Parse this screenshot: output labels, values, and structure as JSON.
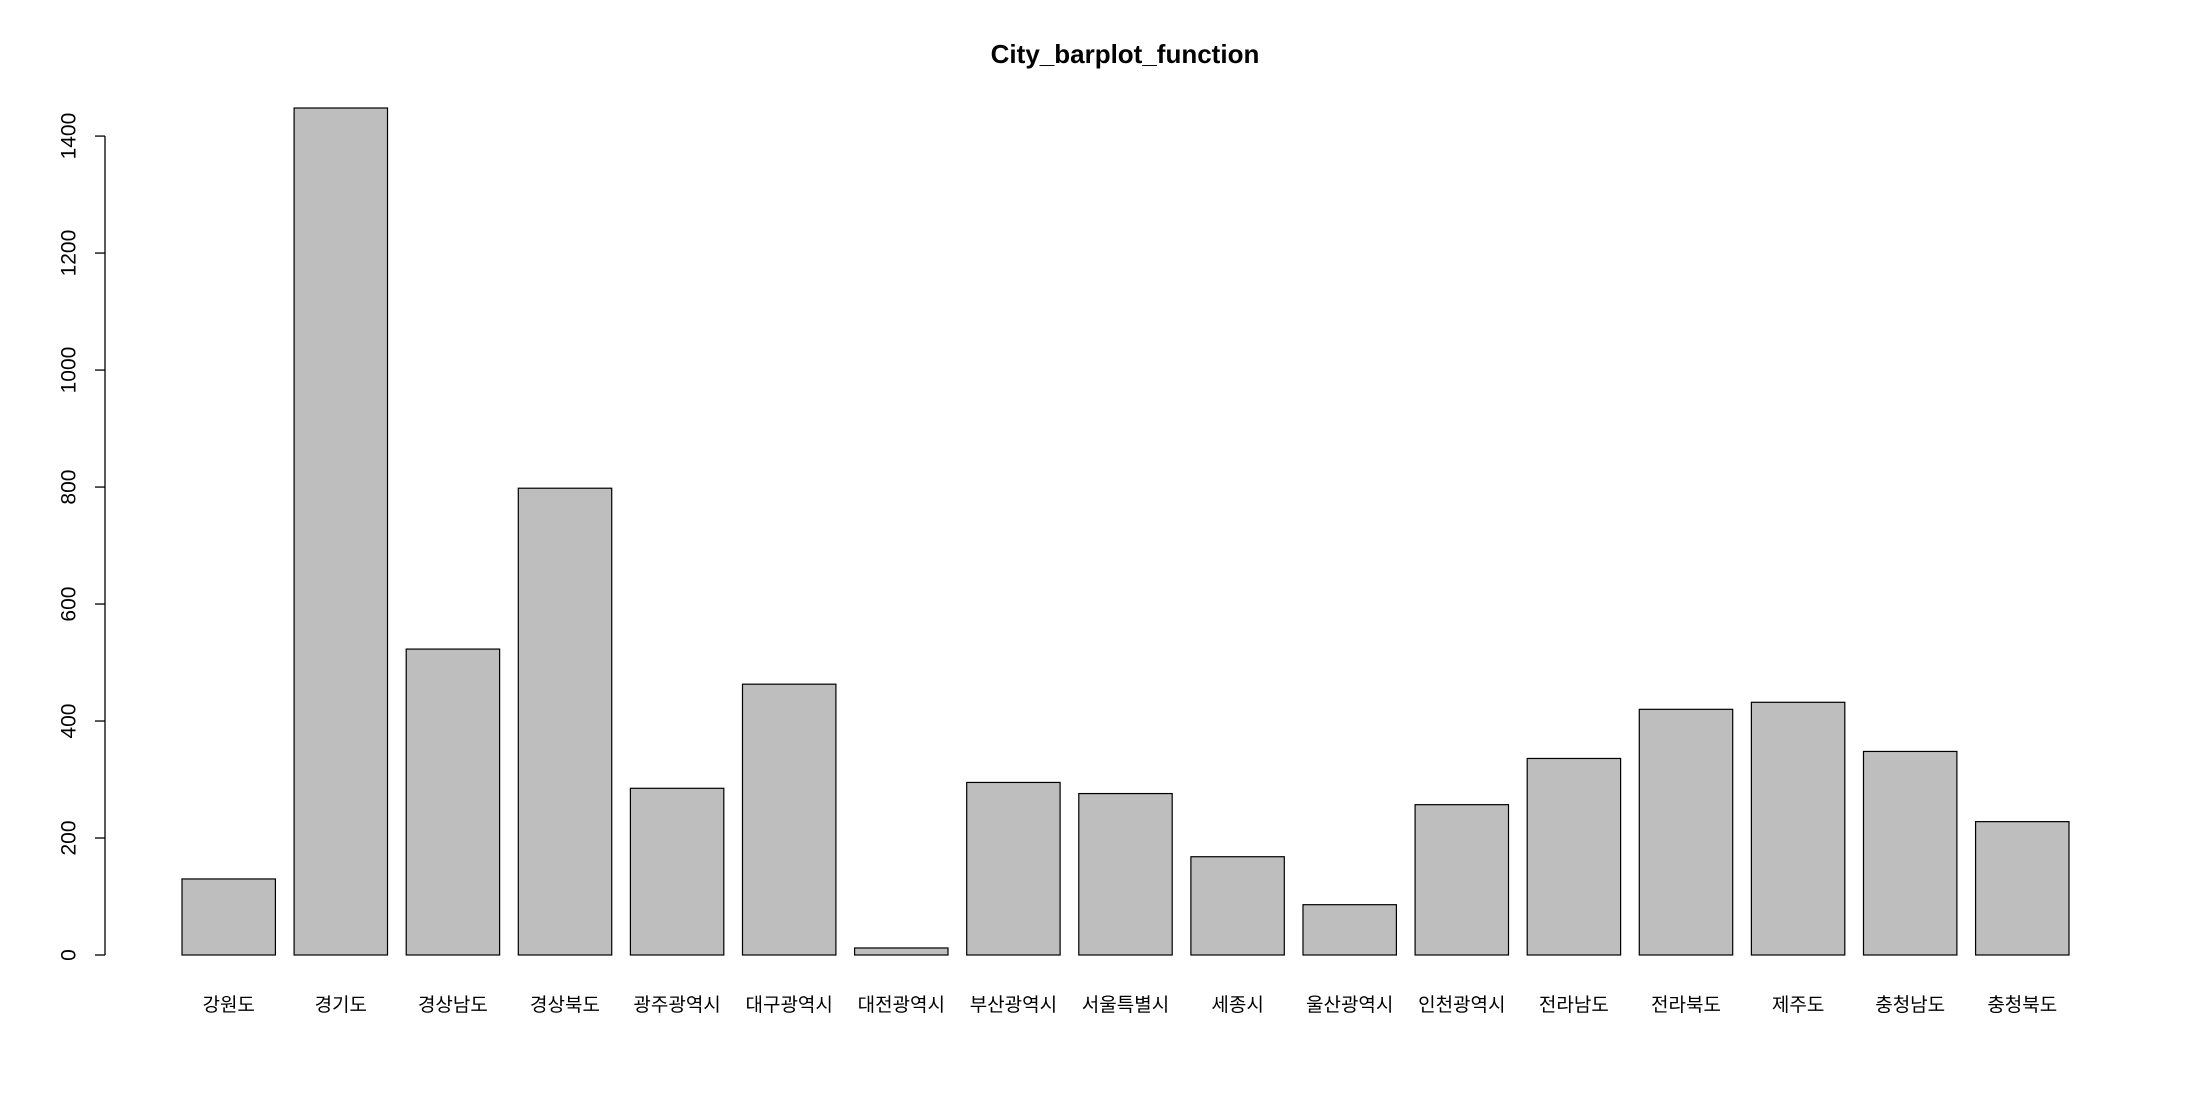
{
  "chart_data": {
    "type": "bar",
    "title": "City_barplot_function",
    "categories": [
      "강원도",
      "경기도",
      "경상남도",
      "경상북도",
      "광주광역시",
      "대구광역시",
      "대전광역시",
      "부산광역시",
      "서울특별시",
      "세종시",
      "울산광역시",
      "인천광역시",
      "전라남도",
      "전라북도",
      "제주도",
      "충청남도",
      "충청북도"
    ],
    "values": [
      130,
      1448,
      523,
      798,
      285,
      463,
      12,
      295,
      276,
      168,
      86,
      257,
      336,
      420,
      432,
      348,
      228
    ],
    "color": "#bebebe",
    "ylim": [
      0,
      1448
    ],
    "yticks": [
      0,
      200,
      400,
      600,
      800,
      1000,
      1200,
      1400
    ],
    "grid": false
  }
}
